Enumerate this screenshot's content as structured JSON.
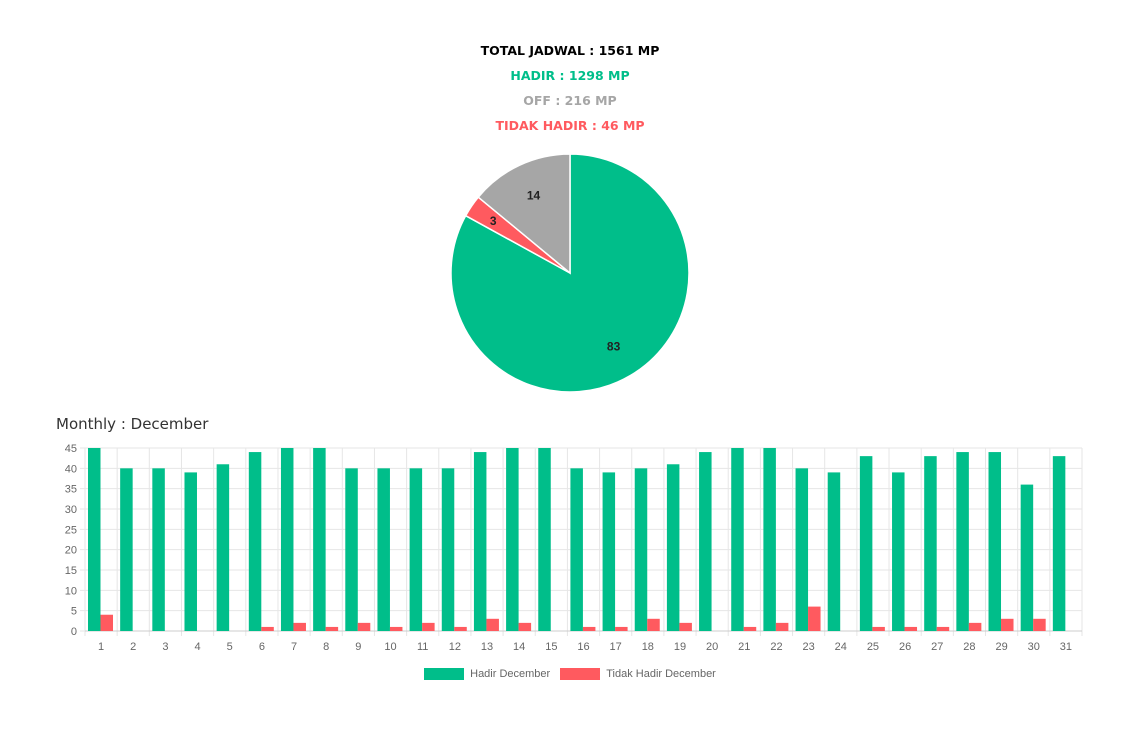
{
  "summary": {
    "total": "TOTAL JADWAL : 1561 MP",
    "hadir": "HADIR : 1298 MP",
    "off": "OFF : 216 MP",
    "tidak_hadir": "TIDAK HADIR : 46 MP"
  },
  "colors": {
    "hadir": "#00be8a",
    "off": "#a6a6a6",
    "tidak_hadir": "#ff5a5f"
  },
  "chart_data": [
    {
      "type": "pie",
      "slices": [
        {
          "label": "83",
          "value": 83,
          "color": "#00be8a"
        },
        {
          "label": "3",
          "value": 3,
          "color": "#ff5a5f"
        },
        {
          "label": "14",
          "value": 14,
          "color": "#a6a6a6"
        }
      ]
    },
    {
      "type": "bar",
      "title": "Monthly : December",
      "categories": [
        "1",
        "2",
        "3",
        "4",
        "5",
        "6",
        "7",
        "8",
        "9",
        "10",
        "11",
        "12",
        "13",
        "14",
        "15",
        "16",
        "17",
        "18",
        "19",
        "20",
        "21",
        "22",
        "23",
        "24",
        "25",
        "26",
        "27",
        "28",
        "29",
        "30",
        "31"
      ],
      "series": [
        {
          "name": "Hadir December",
          "color": "#00be8a",
          "values": [
            45,
            40,
            40,
            39,
            41,
            44,
            45,
            45,
            40,
            40,
            40,
            40,
            44,
            45,
            45,
            40,
            39,
            40,
            41,
            44,
            45,
            45,
            40,
            39,
            43,
            39,
            43,
            44,
            44,
            36,
            43
          ]
        },
        {
          "name": "Tidak Hadir December",
          "color": "#ff5a5f",
          "values": [
            4,
            0,
            0,
            0,
            0,
            1,
            2,
            1,
            2,
            1,
            2,
            1,
            3,
            2,
            0,
            1,
            1,
            3,
            2,
            0,
            1,
            2,
            6,
            0,
            1,
            1,
            1,
            2,
            3,
            3,
            0
          ]
        }
      ],
      "yticks": [
        0,
        5,
        10,
        15,
        20,
        25,
        30,
        35,
        40,
        45
      ],
      "ylim": [
        0,
        45
      ],
      "grid": true,
      "legend": "bottom"
    }
  ]
}
